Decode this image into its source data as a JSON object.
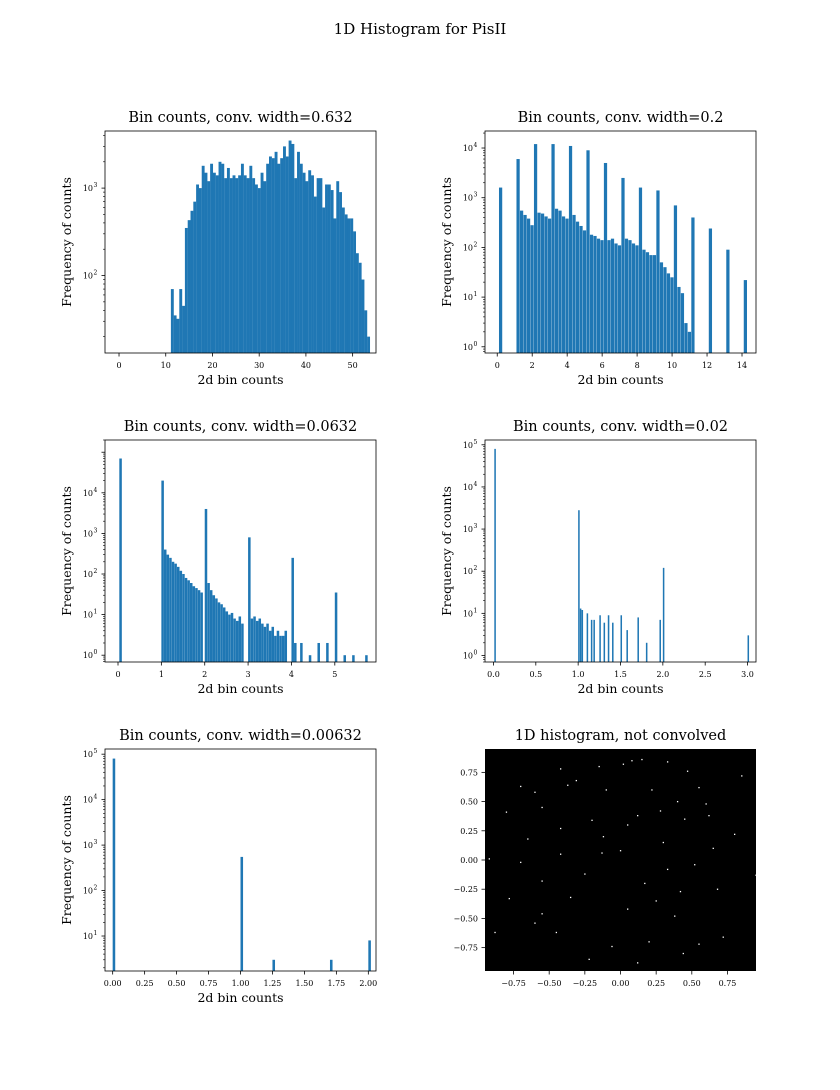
{
  "figure": {
    "title": "1D Histogram for PisII"
  },
  "chart_data": [
    {
      "type": "bar",
      "title": "Bin counts, conv. width=0.632",
      "xlabel": "2d bin counts",
      "ylabel": "Frequency of counts",
      "yscale": "log",
      "xlim": [
        -3,
        55
      ],
      "ylim": [
        13,
        4500
      ],
      "xticks": [
        0,
        10,
        20,
        30,
        40,
        50
      ],
      "yticks": [
        100,
        1000
      ],
      "bar_width": 0.62,
      "bars": [
        [
          11.1,
          70
        ],
        [
          11.7,
          35
        ],
        [
          12.3,
          32
        ],
        [
          12.9,
          70
        ],
        [
          13.5,
          45
        ],
        [
          14.1,
          350
        ],
        [
          14.7,
          430
        ],
        [
          15.3,
          550
        ],
        [
          15.9,
          700
        ],
        [
          16.5,
          1100
        ],
        [
          17.1,
          1000
        ],
        [
          17.7,
          1800
        ],
        [
          18.3,
          1500
        ],
        [
          18.9,
          1200
        ],
        [
          19.5,
          1900
        ],
        [
          20.1,
          1500
        ],
        [
          20.7,
          1400
        ],
        [
          21.3,
          2000
        ],
        [
          21.9,
          1900
        ],
        [
          22.5,
          1300
        ],
        [
          23.1,
          1700
        ],
        [
          23.7,
          1300
        ],
        [
          24.3,
          1400
        ],
        [
          24.9,
          1300
        ],
        [
          25.5,
          1400
        ],
        [
          26.1,
          1900
        ],
        [
          26.7,
          1400
        ],
        [
          27.3,
          1300
        ],
        [
          27.9,
          1800
        ],
        [
          28.5,
          1300
        ],
        [
          29.1,
          1100
        ],
        [
          29.7,
          1000
        ],
        [
          30.3,
          1500
        ],
        [
          30.9,
          1200
        ],
        [
          31.5,
          1900
        ],
        [
          32.1,
          2300
        ],
        [
          32.7,
          2200
        ],
        [
          33.3,
          2600
        ],
        [
          33.9,
          1900
        ],
        [
          34.5,
          2200
        ],
        [
          35.1,
          3000
        ],
        [
          35.7,
          2300
        ],
        [
          36.3,
          3500
        ],
        [
          36.9,
          3200
        ],
        [
          37.5,
          1300
        ],
        [
          38.1,
          2600
        ],
        [
          38.7,
          1900
        ],
        [
          39.3,
          1500
        ],
        [
          39.9,
          1200
        ],
        [
          40.5,
          1600
        ],
        [
          41.1,
          1400
        ],
        [
          41.7,
          800
        ],
        [
          42.3,
          1300
        ],
        [
          42.9,
          1300
        ],
        [
          43.5,
          600
        ],
        [
          44.1,
          1100
        ],
        [
          44.7,
          1100
        ],
        [
          45.3,
          950
        ],
        [
          45.9,
          450
        ],
        [
          46.5,
          1200
        ],
        [
          47.1,
          900
        ],
        [
          47.7,
          600
        ],
        [
          48.3,
          500
        ],
        [
          48.9,
          450
        ],
        [
          49.5,
          450
        ],
        [
          50.1,
          320
        ],
        [
          50.7,
          180
        ],
        [
          51.3,
          140
        ],
        [
          51.9,
          90
        ],
        [
          52.5,
          40
        ],
        [
          53.1,
          20
        ]
      ]
    },
    {
      "type": "bar",
      "title": "Bin counts, conv. width=0.2",
      "xlabel": "2d bin counts",
      "ylabel": "Frequency of counts",
      "yscale": "log",
      "xlim": [
        -0.7,
        14.8
      ],
      "ylim": [
        0.75,
        22000
      ],
      "xticks": [
        0,
        2,
        4,
        6,
        8,
        10,
        12,
        14
      ],
      "yticks": [
        1,
        10,
        100,
        1000,
        10000
      ],
      "bar_width": 0.185,
      "bars": [
        [
          0.1,
          1600
        ],
        [
          1.1,
          6000
        ],
        [
          1.3,
          550
        ],
        [
          1.5,
          450
        ],
        [
          1.7,
          380
        ],
        [
          1.9,
          280
        ],
        [
          2.1,
          12000
        ],
        [
          2.3,
          500
        ],
        [
          2.5,
          480
        ],
        [
          2.7,
          420
        ],
        [
          2.9,
          380
        ],
        [
          3.1,
          12000
        ],
        [
          3.3,
          600
        ],
        [
          3.5,
          550
        ],
        [
          3.7,
          420
        ],
        [
          3.9,
          380
        ],
        [
          4.1,
          11000
        ],
        [
          4.3,
          450
        ],
        [
          4.5,
          330
        ],
        [
          4.7,
          270
        ],
        [
          4.9,
          220
        ],
        [
          5.1,
          9000
        ],
        [
          5.3,
          180
        ],
        [
          5.5,
          170
        ],
        [
          5.7,
          150
        ],
        [
          5.9,
          140
        ],
        [
          6.1,
          5000
        ],
        [
          6.3,
          140
        ],
        [
          6.5,
          150
        ],
        [
          6.7,
          120
        ],
        [
          6.9,
          110
        ],
        [
          7.1,
          2500
        ],
        [
          7.3,
          150
        ],
        [
          7.5,
          140
        ],
        [
          7.7,
          120
        ],
        [
          7.9,
          110
        ],
        [
          8.1,
          1600
        ],
        [
          8.3,
          90
        ],
        [
          8.5,
          80
        ],
        [
          8.7,
          70
        ],
        [
          8.9,
          70
        ],
        [
          9.1,
          1400
        ],
        [
          9.3,
          50
        ],
        [
          9.5,
          40
        ],
        [
          9.7,
          30
        ],
        [
          9.9,
          25
        ],
        [
          10.1,
          700
        ],
        [
          10.3,
          16
        ],
        [
          10.5,
          12
        ],
        [
          10.7,
          3
        ],
        [
          10.9,
          2
        ],
        [
          11.1,
          400
        ],
        [
          12.1,
          240
        ],
        [
          13.1,
          90
        ],
        [
          14.1,
          22
        ]
      ]
    },
    {
      "type": "bar",
      "title": "Bin counts, conv. width=0.0632",
      "xlabel": "2d bin counts",
      "ylabel": "Frequency of counts",
      "yscale": "log",
      "xlim": [
        -0.3,
        5.95
      ],
      "ylim": [
        0.68,
        200000
      ],
      "xticks": [
        0,
        1,
        2,
        3,
        4,
        5
      ],
      "yticks": [
        1,
        10,
        100,
        1000,
        10000
      ],
      "bar_width": 0.058,
      "bars": [
        [
          0.03,
          70000
        ],
        [
          1.0,
          20000
        ],
        [
          1.06,
          400
        ],
        [
          1.12,
          300
        ],
        [
          1.18,
          250
        ],
        [
          1.24,
          200
        ],
        [
          1.3,
          180
        ],
        [
          1.36,
          150
        ],
        [
          1.42,
          120
        ],
        [
          1.48,
          100
        ],
        [
          1.54,
          80
        ],
        [
          1.6,
          70
        ],
        [
          1.66,
          60
        ],
        [
          1.72,
          50
        ],
        [
          1.78,
          45
        ],
        [
          1.84,
          40
        ],
        [
          1.9,
          35
        ],
        [
          2.0,
          4000
        ],
        [
          2.06,
          60
        ],
        [
          2.12,
          40
        ],
        [
          2.18,
          30
        ],
        [
          2.24,
          25
        ],
        [
          2.3,
          20
        ],
        [
          2.36,
          18
        ],
        [
          2.42,
          15
        ],
        [
          2.48,
          12
        ],
        [
          2.54,
          10
        ],
        [
          2.6,
          11
        ],
        [
          2.66,
          8
        ],
        [
          2.72,
          7
        ],
        [
          2.78,
          9
        ],
        [
          2.84,
          6
        ],
        [
          3.0,
          800
        ],
        [
          3.06,
          8
        ],
        [
          3.12,
          9
        ],
        [
          3.18,
          7
        ],
        [
          3.24,
          8
        ],
        [
          3.3,
          6
        ],
        [
          3.36,
          5
        ],
        [
          3.42,
          6
        ],
        [
          3.48,
          4
        ],
        [
          3.54,
          5
        ],
        [
          3.6,
          3
        ],
        [
          3.66,
          4
        ],
        [
          3.72,
          3
        ],
        [
          3.78,
          3
        ],
        [
          3.84,
          4
        ],
        [
          4.0,
          250
        ],
        [
          4.06,
          2
        ],
        [
          4.2,
          2
        ],
        [
          4.4,
          1
        ],
        [
          4.6,
          2
        ],
        [
          4.8,
          2
        ],
        [
          5.0,
          35
        ],
        [
          5.2,
          1
        ],
        [
          5.4,
          1
        ],
        [
          5.7,
          1
        ]
      ]
    },
    {
      "type": "bar",
      "title": "Bin counts, conv. width=0.02",
      "xlabel": "2d bin counts",
      "ylabel": "Frequency of counts",
      "yscale": "log",
      "xlim": [
        -0.1,
        3.1
      ],
      "ylim": [
        0.7,
        130000
      ],
      "xticks": [
        0.0,
        0.5,
        1.0,
        1.5,
        2.0,
        2.5,
        3.0
      ],
      "yticks": [
        1,
        10,
        100,
        1000,
        10000,
        100000
      ],
      "bar_width": 0.018,
      "bars": [
        [
          0.01,
          80000
        ],
        [
          1.0,
          2800
        ],
        [
          1.02,
          13
        ],
        [
          1.04,
          12
        ],
        [
          1.1,
          10
        ],
        [
          1.15,
          7
        ],
        [
          1.18,
          7
        ],
        [
          1.25,
          9
        ],
        [
          1.3,
          6
        ],
        [
          1.35,
          9
        ],
        [
          1.4,
          6
        ],
        [
          1.5,
          9
        ],
        [
          1.57,
          4
        ],
        [
          1.7,
          8
        ],
        [
          1.8,
          2
        ],
        [
          1.96,
          7
        ],
        [
          2.0,
          120
        ],
        [
          3.0,
          3
        ]
      ]
    },
    {
      "type": "bar",
      "title": "Bin counts, conv. width=0.00632",
      "xlabel": "2d bin counts",
      "ylabel": "Frequency of counts",
      "yscale": "log",
      "xlim": [
        -0.06,
        2.06
      ],
      "ylim": [
        1.7,
        130000
      ],
      "xticks": [
        0.0,
        0.25,
        0.5,
        0.75,
        1.0,
        1.25,
        1.5,
        1.75,
        2.0
      ],
      "xtick_labels": [
        "0.00",
        "0.25",
        "0.50",
        "0.75",
        "1.00",
        "1.25",
        "1.50",
        "1.75",
        "2.00"
      ],
      "yticks": [
        10,
        100,
        1000,
        10000,
        100000
      ],
      "bar_width": 0.02,
      "bars": [
        [
          0.0,
          80000
        ],
        [
          1.0,
          550
        ],
        [
          1.25,
          3
        ],
        [
          1.7,
          3
        ],
        [
          2.0,
          8
        ]
      ]
    },
    {
      "type": "heatmap",
      "title": "1D histogram, not convolved",
      "xlim": [
        -0.95,
        0.95
      ],
      "ylim": [
        -0.95,
        0.95
      ],
      "xticks": [
        -0.75,
        -0.5,
        -0.25,
        0.0,
        0.25,
        0.5,
        0.75
      ],
      "xtick_labels": [
        "−0.75",
        "−0.50",
        "−0.25",
        "0.00",
        "0.25",
        "0.50",
        "0.75"
      ],
      "yticks": [
        0.75,
        0.5,
        0.25,
        0.0,
        -0.25,
        -0.5,
        -0.75
      ],
      "ytick_labels": [
        "0.75",
        "0.50",
        "0.25",
        "0.00",
        "−0.25",
        "−0.50",
        "−0.75"
      ],
      "background": "#000000",
      "dot_color": "#ffffff",
      "points": [
        [
          -0.42,
          0.78
        ],
        [
          -0.37,
          0.64
        ],
        [
          -0.31,
          0.68
        ],
        [
          0.02,
          0.82
        ],
        [
          0.08,
          0.85
        ],
        [
          0.15,
          0.86
        ],
        [
          0.33,
          0.84
        ],
        [
          0.47,
          0.76
        ],
        [
          -0.15,
          0.8
        ],
        [
          -0.6,
          0.58
        ],
        [
          -0.7,
          0.63
        ],
        [
          -0.55,
          0.45
        ],
        [
          -0.1,
          0.6
        ],
        [
          0.22,
          0.6
        ],
        [
          0.4,
          0.5
        ],
        [
          0.6,
          0.48
        ],
        [
          0.55,
          0.62
        ],
        [
          -0.8,
          0.41
        ],
        [
          -0.42,
          0.27
        ],
        [
          -0.2,
          0.34
        ],
        [
          0.05,
          0.3
        ],
        [
          0.12,
          0.38
        ],
        [
          0.28,
          0.42
        ],
        [
          0.45,
          0.35
        ],
        [
          0.8,
          0.22
        ],
        [
          -0.65,
          0.18
        ],
        [
          -0.13,
          0.06
        ],
        [
          0.0,
          0.08
        ],
        [
          0.3,
          0.15
        ],
        [
          0.65,
          0.1
        ],
        [
          -0.92,
          0.01
        ],
        [
          -0.7,
          -0.02
        ],
        [
          -0.42,
          0.05
        ],
        [
          0.52,
          -0.04
        ],
        [
          0.95,
          -0.13
        ],
        [
          -0.55,
          -0.18
        ],
        [
          -0.25,
          -0.12
        ],
        [
          0.17,
          -0.2
        ],
        [
          0.42,
          -0.27
        ],
        [
          0.68,
          -0.25
        ],
        [
          -0.78,
          -0.33
        ],
        [
          -0.35,
          -0.32
        ],
        [
          0.25,
          -0.35
        ],
        [
          -0.55,
          -0.46
        ],
        [
          0.05,
          -0.42
        ],
        [
          0.38,
          -0.48
        ],
        [
          -0.88,
          -0.62
        ],
        [
          -0.45,
          -0.62
        ],
        [
          -0.06,
          -0.74
        ],
        [
          0.2,
          -0.7
        ],
        [
          0.55,
          -0.72
        ],
        [
          0.72,
          -0.66
        ],
        [
          -0.22,
          -0.85
        ],
        [
          0.12,
          -0.88
        ],
        [
          0.44,
          -0.8
        ],
        [
          -0.6,
          -0.54
        ],
        [
          0.85,
          0.72
        ],
        [
          -0.12,
          0.2
        ],
        [
          0.62,
          0.38
        ],
        [
          0.33,
          -0.08
        ]
      ]
    }
  ]
}
